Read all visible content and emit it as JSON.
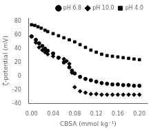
{
  "chart_data": {
    "type": "scatter",
    "xlabel": "CBSA (mmol kg⁻¹)",
    "ylabel": "ζ-potential (mV)",
    "xlim": [
      -0.005,
      0.215
    ],
    "ylim": [
      -40,
      85
    ],
    "xticks": [
      {
        "value": 0,
        "label": "0.00"
      },
      0.04,
      0.08,
      0.12,
      0.16,
      {
        "value": 0.2,
        "label": "0.20"
      }
    ],
    "yticks": [
      -40,
      -20,
      0,
      20,
      40,
      60,
      80
    ],
    "grid": false,
    "legend": "upper right",
    "series": [
      {
        "name": "pH 6.8",
        "color": "black",
        "marker": "circle",
        "x": [
          0.0,
          0.008,
          0.014,
          0.02,
          0.025,
          0.03,
          0.04,
          0.05,
          0.06,
          0.07,
          0.075,
          0.08,
          0.09,
          0.1,
          0.11,
          0.12,
          0.13,
          0.14,
          0.15,
          0.16,
          0.17,
          0.18,
          0.19,
          0.2
        ],
        "values": [
          58,
          53,
          48,
          44,
          40,
          37,
          33,
          27,
          20,
          13,
          8,
          4,
          -1,
          -4,
          -6,
          -8,
          -10,
          -11,
          -12,
          -12,
          -13,
          -13,
          -14,
          -14
        ]
      },
      {
        "name": "pH 10.0",
        "color": "black",
        "marker": "diamond",
        "x": [
          0.0,
          0.008,
          0.014,
          0.02,
          0.025,
          0.03,
          0.04,
          0.05,
          0.06,
          0.065,
          0.07,
          0.075,
          0.08,
          0.09,
          0.1,
          0.11,
          0.12,
          0.13,
          0.14,
          0.15,
          0.16,
          0.17,
          0.18,
          0.19,
          0.2
        ],
        "values": [
          58,
          49,
          42,
          38,
          35,
          32,
          29,
          27,
          25,
          22,
          18,
          5,
          -16,
          -22,
          -24,
          -26,
          -26,
          -27,
          -27,
          -27,
          -27,
          -27,
          -27,
          -27,
          -27
        ]
      },
      {
        "name": "pH 4.0",
        "color": "black",
        "marker": "square",
        "x": [
          0.0,
          0.006,
          0.012,
          0.018,
          0.025,
          0.03,
          0.04,
          0.05,
          0.06,
          0.07,
          0.08,
          0.09,
          0.1,
          0.11,
          0.12,
          0.13,
          0.14,
          0.15,
          0.16,
          0.17,
          0.18,
          0.19,
          0.2
        ],
        "values": [
          75,
          74,
          72,
          70,
          67,
          65,
          62,
          59,
          56,
          53,
          50,
          46,
          42,
          38,
          35,
          32,
          30,
          29,
          28,
          27,
          26,
          25,
          24
        ]
      }
    ]
  }
}
